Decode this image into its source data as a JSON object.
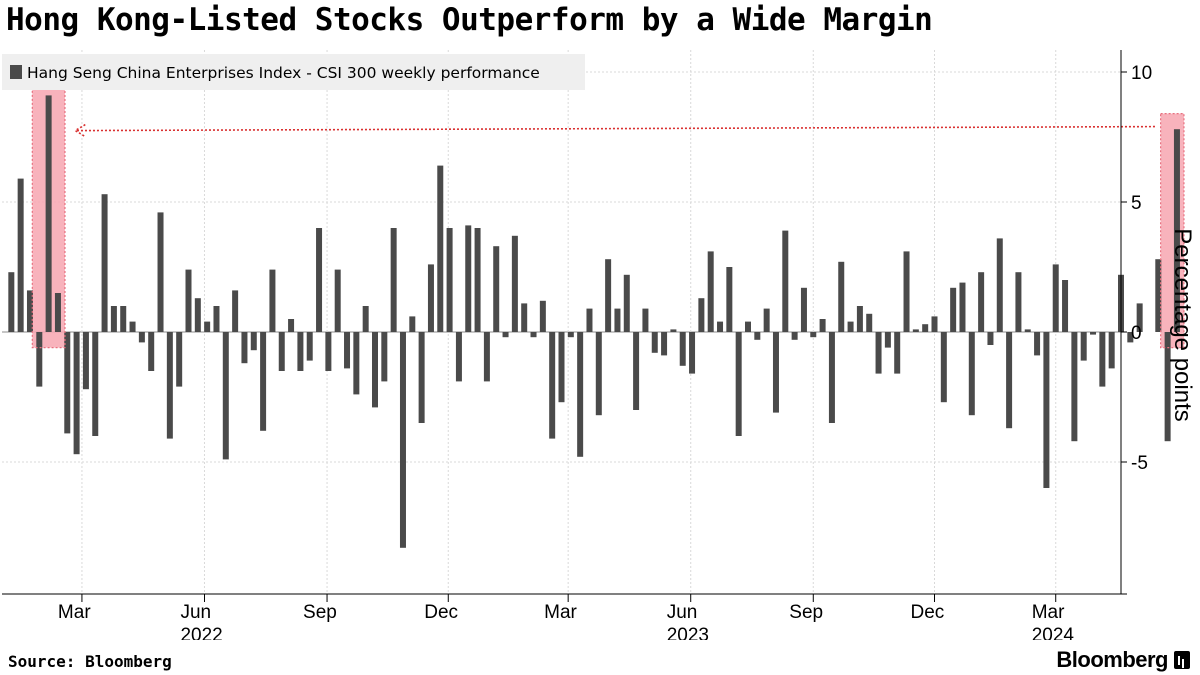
{
  "header": {
    "title": "Hong Kong-Listed Stocks Outperform by a Wide Margin"
  },
  "footer": {
    "source": "Source: Bloomberg",
    "brand": "Bloomberg"
  },
  "colors": {
    "bar": "#4a4a4a",
    "highlight_fill": "#f7a6b0",
    "highlight_border": "#e8707f",
    "arrow": "#d93030",
    "legend_bg": "#efefef"
  },
  "icons": {
    "brand": "bloomberg-terminal-icon",
    "legend_swatch": "square-swatch-icon"
  },
  "chart_data": {
    "type": "bar",
    "title": "Hong Kong-Listed Stocks Outperform by a Wide Margin",
    "legend": [
      "Hang Seng China Enterprises Index - CSI 300 weekly performance"
    ],
    "legend_placement": "top-left",
    "ylabel": "Percentage points",
    "yaxis_side": "right",
    "ylim": [
      -10,
      10.5
    ],
    "yticks": [
      10,
      5,
      0,
      -5
    ],
    "grid": true,
    "x_range": [
      "2021-12-31",
      "2024-04-19"
    ],
    "x_month_ticks": [
      {
        "date": "2022-03-01",
        "label": "Mar"
      },
      {
        "date": "2022-06-01",
        "label": "Jun"
      },
      {
        "date": "2022-09-01",
        "label": "Sep"
      },
      {
        "date": "2022-12-01",
        "label": "Dec"
      },
      {
        "date": "2023-03-01",
        "label": "Mar"
      },
      {
        "date": "2023-06-01",
        "label": "Jun"
      },
      {
        "date": "2023-09-01",
        "label": "Sep"
      },
      {
        "date": "2023-12-01",
        "label": "Dec"
      },
      {
        "date": "2024-03-01",
        "label": "Mar"
      }
    ],
    "x_year_labels": [
      {
        "date": "2022-06-01",
        "label": "2022"
      },
      {
        "date": "2023-06-01",
        "label": "2023"
      },
      {
        "date": "2024-03-01",
        "label": "2024"
      }
    ],
    "start_week": "2022-01-07",
    "series": [
      {
        "values": [
          2.3,
          5.9,
          1.6,
          -2.1,
          9.1,
          1.5,
          -3.9,
          -4.7,
          -2.2,
          -4.0,
          5.3,
          1.0,
          1.0,
          0.4,
          -0.4,
          -1.5,
          4.6,
          -4.1,
          -2.1,
          2.4,
          1.3,
          0.4,
          1.0,
          -4.9,
          1.6,
          -1.2,
          -0.7,
          -3.8,
          2.4,
          -1.5,
          0.5,
          -1.5,
          -1.1,
          4.0,
          -1.5,
          2.4,
          -1.4,
          -2.4,
          1.0,
          -2.9,
          -1.9,
          4.0,
          -8.3,
          0.6,
          -3.5,
          2.6,
          6.4,
          4.0,
          -1.9,
          4.1,
          4.0,
          -1.9,
          3.3,
          -0.2,
          3.7,
          1.1,
          -0.2,
          1.2,
          -4.1,
          -2.7,
          -0.2,
          -4.8,
          0.9,
          -3.2,
          2.8,
          0.9,
          2.2,
          -3.0,
          0.9,
          -0.8,
          -0.9,
          0.1,
          -1.3,
          -1.6,
          1.3,
          3.1,
          0.4,
          2.5,
          -4.0,
          0.4,
          -0.3,
          0.9,
          -3.1,
          3.9,
          -0.3,
          1.7,
          -0.2,
          0.5,
          -3.5,
          2.7,
          0.4,
          1.0,
          0.7,
          -1.6,
          -0.6,
          -1.6,
          3.1,
          0.1,
          0.3,
          0.6,
          -2.7,
          1.7,
          1.9,
          -3.2,
          2.3,
          -0.5,
          3.6,
          -3.7,
          2.3,
          0.1,
          -0.9,
          -6.0,
          2.6,
          2.0,
          -4.2,
          -1.1,
          -0.1,
          -2.1,
          -1.4,
          2.2,
          -0.4,
          1.1,
          0.0,
          2.8,
          -4.2,
          7.8
        ]
      }
    ],
    "highlights": [
      {
        "from_week": 3,
        "to_week": 5,
        "ylim": [
          -0.6,
          9.4
        ]
      },
      {
        "from_week": 124,
        "to_week": 125,
        "ylim": [
          -0.6,
          8.4
        ]
      }
    ],
    "annotation_arrow": {
      "from_week": 122,
      "to_week": 6,
      "y": 7.9
    }
  }
}
